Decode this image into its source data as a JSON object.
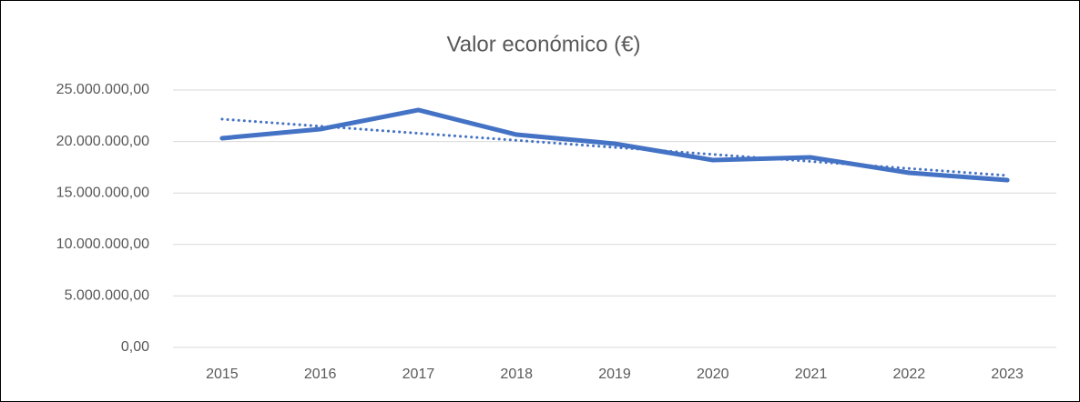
{
  "chart_data": {
    "type": "line",
    "title": "Valor económico (€)",
    "categories": [
      "2015",
      "2016",
      "2017",
      "2018",
      "2019",
      "2020",
      "2021",
      "2022",
      "2023"
    ],
    "series": [
      {
        "color": "#4472c4",
        "style": "solid",
        "values": [
          20320000,
          21200000,
          23060000,
          20670000,
          19790000,
          18200000,
          18460000,
          16960000,
          16250000
        ]
      },
      {
        "color": "#4472c4",
        "style": "dotted",
        "values": [
          22170000,
          21485000,
          20800000,
          20115000,
          19430000,
          18750000,
          18065000,
          17380000,
          16700000
        ]
      }
    ],
    "ylim": [
      0,
      25000000
    ],
    "yticks": [
      {
        "value": 0,
        "label": "0,00"
      },
      {
        "value": 5000000,
        "label": "5.000.000,00"
      },
      {
        "value": 10000000,
        "label": "10.000.000,00"
      },
      {
        "value": 15000000,
        "label": "15.000.000,00"
      },
      {
        "value": 20000000,
        "label": "20.000.000,00"
      },
      {
        "value": 25000000,
        "label": "25.000.000,00"
      }
    ],
    "grid": true
  }
}
